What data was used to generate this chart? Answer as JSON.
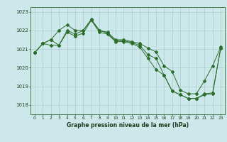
{
  "xlabel": "Graphe pression niveau de la mer (hPa)",
  "background_color": "#cce8ea",
  "grid_color": "#aacccc",
  "line_color": "#2d6e2d",
  "x_values": [
    0,
    1,
    2,
    3,
    4,
    5,
    6,
    7,
    8,
    9,
    10,
    11,
    12,
    13,
    14,
    15,
    16,
    17,
    18,
    19,
    20,
    21,
    22,
    23
  ],
  "series1": [
    1020.8,
    1021.3,
    1021.5,
    1022.0,
    1022.3,
    1022.0,
    1022.0,
    1022.6,
    1022.0,
    1021.9,
    1021.5,
    1021.5,
    1021.4,
    1021.3,
    1021.05,
    1020.85,
    1020.1,
    1019.8,
    1018.8,
    1018.6,
    1018.6,
    1019.3,
    1020.1,
    1021.1
  ],
  "series2": [
    1020.8,
    1021.3,
    1021.5,
    1021.2,
    1022.0,
    1021.8,
    1022.0,
    1022.55,
    1022.0,
    1021.85,
    1021.45,
    1021.45,
    1021.35,
    1021.2,
    1020.7,
    1020.5,
    1019.6,
    1018.75,
    1018.55,
    1018.35,
    1018.35,
    1018.6,
    1018.65,
    1021.05
  ],
  "series3": [
    1020.8,
    1021.3,
    1021.2,
    1021.2,
    1021.9,
    1021.7,
    1021.85,
    1022.55,
    1021.9,
    1021.8,
    1021.4,
    1021.4,
    1021.3,
    1021.1,
    1020.5,
    1019.9,
    1019.6,
    1018.75,
    1018.55,
    1018.35,
    1018.35,
    1018.55,
    1018.6,
    1021.05
  ],
  "ylim": [
    1017.5,
    1023.25
  ],
  "yticks": [
    1018,
    1019,
    1020,
    1021,
    1022,
    1023
  ],
  "xticks": [
    0,
    1,
    2,
    3,
    4,
    5,
    6,
    7,
    8,
    9,
    10,
    11,
    12,
    13,
    14,
    15,
    16,
    17,
    18,
    19,
    20,
    21,
    22,
    23
  ]
}
